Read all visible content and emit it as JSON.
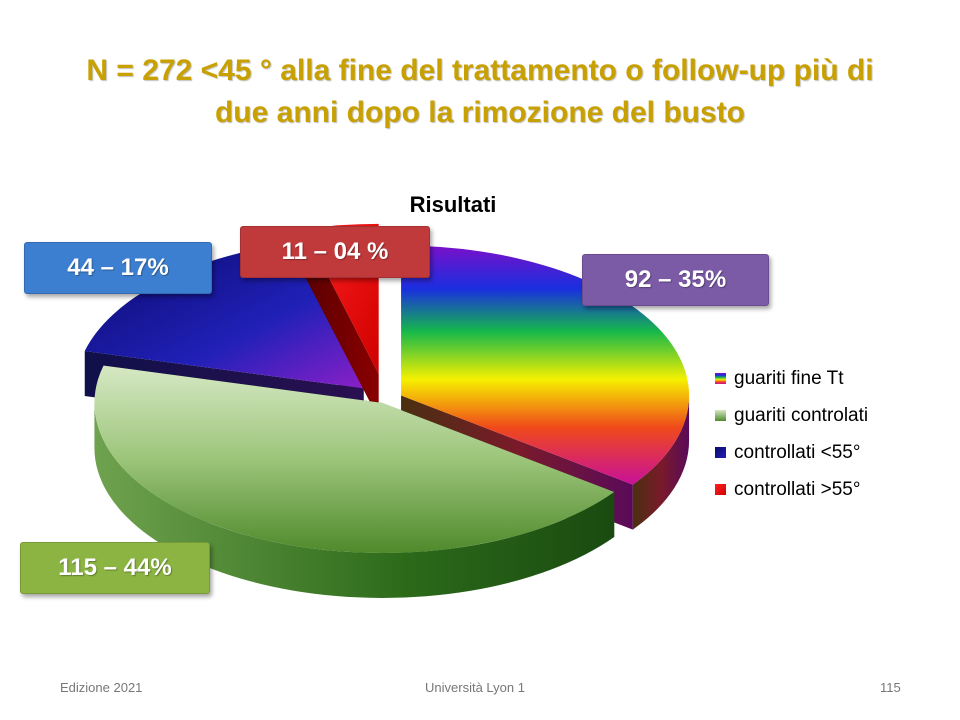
{
  "title_line1": "N = 272 <45 ° alla fine del trattamento o follow-up più di",
  "title_line2": "due anni dopo la rimozione del busto",
  "chart_data": {
    "type": "pie",
    "title": "Risultati",
    "legend_position": "right",
    "series": [
      {
        "name": "guariti fine Tt",
        "value": 92,
        "percent": 35,
        "label": "92 – 35%",
        "color": "#e0207f",
        "callout_color": "#7b5aa6"
      },
      {
        "name": "guariti controlati",
        "value": 115,
        "percent": 44,
        "label": "115 – 44%",
        "color": "#7fb24a",
        "callout_color": "#8bb443"
      },
      {
        "name": "controllati <55°",
        "value": 44,
        "percent": 17,
        "label": "44 – 17%",
        "color": "#1b1b9c",
        "callout_color": "#3c7fd0"
      },
      {
        "name": "controllati >55°",
        "value": 11,
        "percent": 4,
        "label": "11 – 04 %",
        "color": "#ff0000",
        "callout_color": "#c0393b"
      }
    ]
  },
  "footer": {
    "left": "Edizione 2021",
    "center": "Università Lyon 1",
    "right": "115"
  }
}
